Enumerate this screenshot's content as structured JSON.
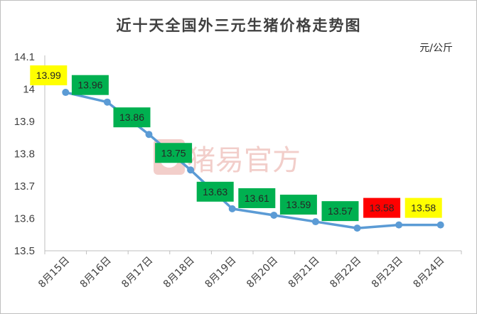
{
  "chart_data": {
    "type": "line",
    "title": "近十天全国外三元生猪价格走势图",
    "unit": "元/公斤",
    "categories": [
      "8月15日",
      "8月16日",
      "8月17日",
      "8月18日",
      "8月19日",
      "8月20日",
      "8月21日",
      "8月22日",
      "8月23日",
      "8月24日"
    ],
    "series": [
      {
        "values": [
          13.99,
          13.96,
          13.86,
          13.75,
          13.63,
          13.61,
          13.59,
          13.57,
          13.58,
          13.58
        ],
        "color": "#5b9bd5"
      }
    ],
    "data_labels": [
      "13.99",
      "13.96",
      "13.86",
      "13.75",
      "13.63",
      "13.61",
      "13.59",
      "13.57",
      "13.58",
      "13.58"
    ],
    "label_colors": [
      "#ffff00",
      "#00b050",
      "#00b050",
      "#00b050",
      "#00b050",
      "#00b050",
      "#00b050",
      "#00b050",
      "#ff0000",
      "#ffff00"
    ],
    "ylim": [
      13.5,
      14.1
    ],
    "yticks": [
      13.5,
      13.6,
      13.7,
      13.8,
      13.9,
      14,
      14.1
    ],
    "ytick_labels": [
      "13.5",
      "13.6",
      "13.7",
      "13.8",
      "13.9",
      "14",
      "14.1"
    ],
    "grid": false,
    "legend": "none"
  },
  "watermark": {
    "text": "猪易官方",
    "logo_icon": "pig-logo-icon"
  }
}
